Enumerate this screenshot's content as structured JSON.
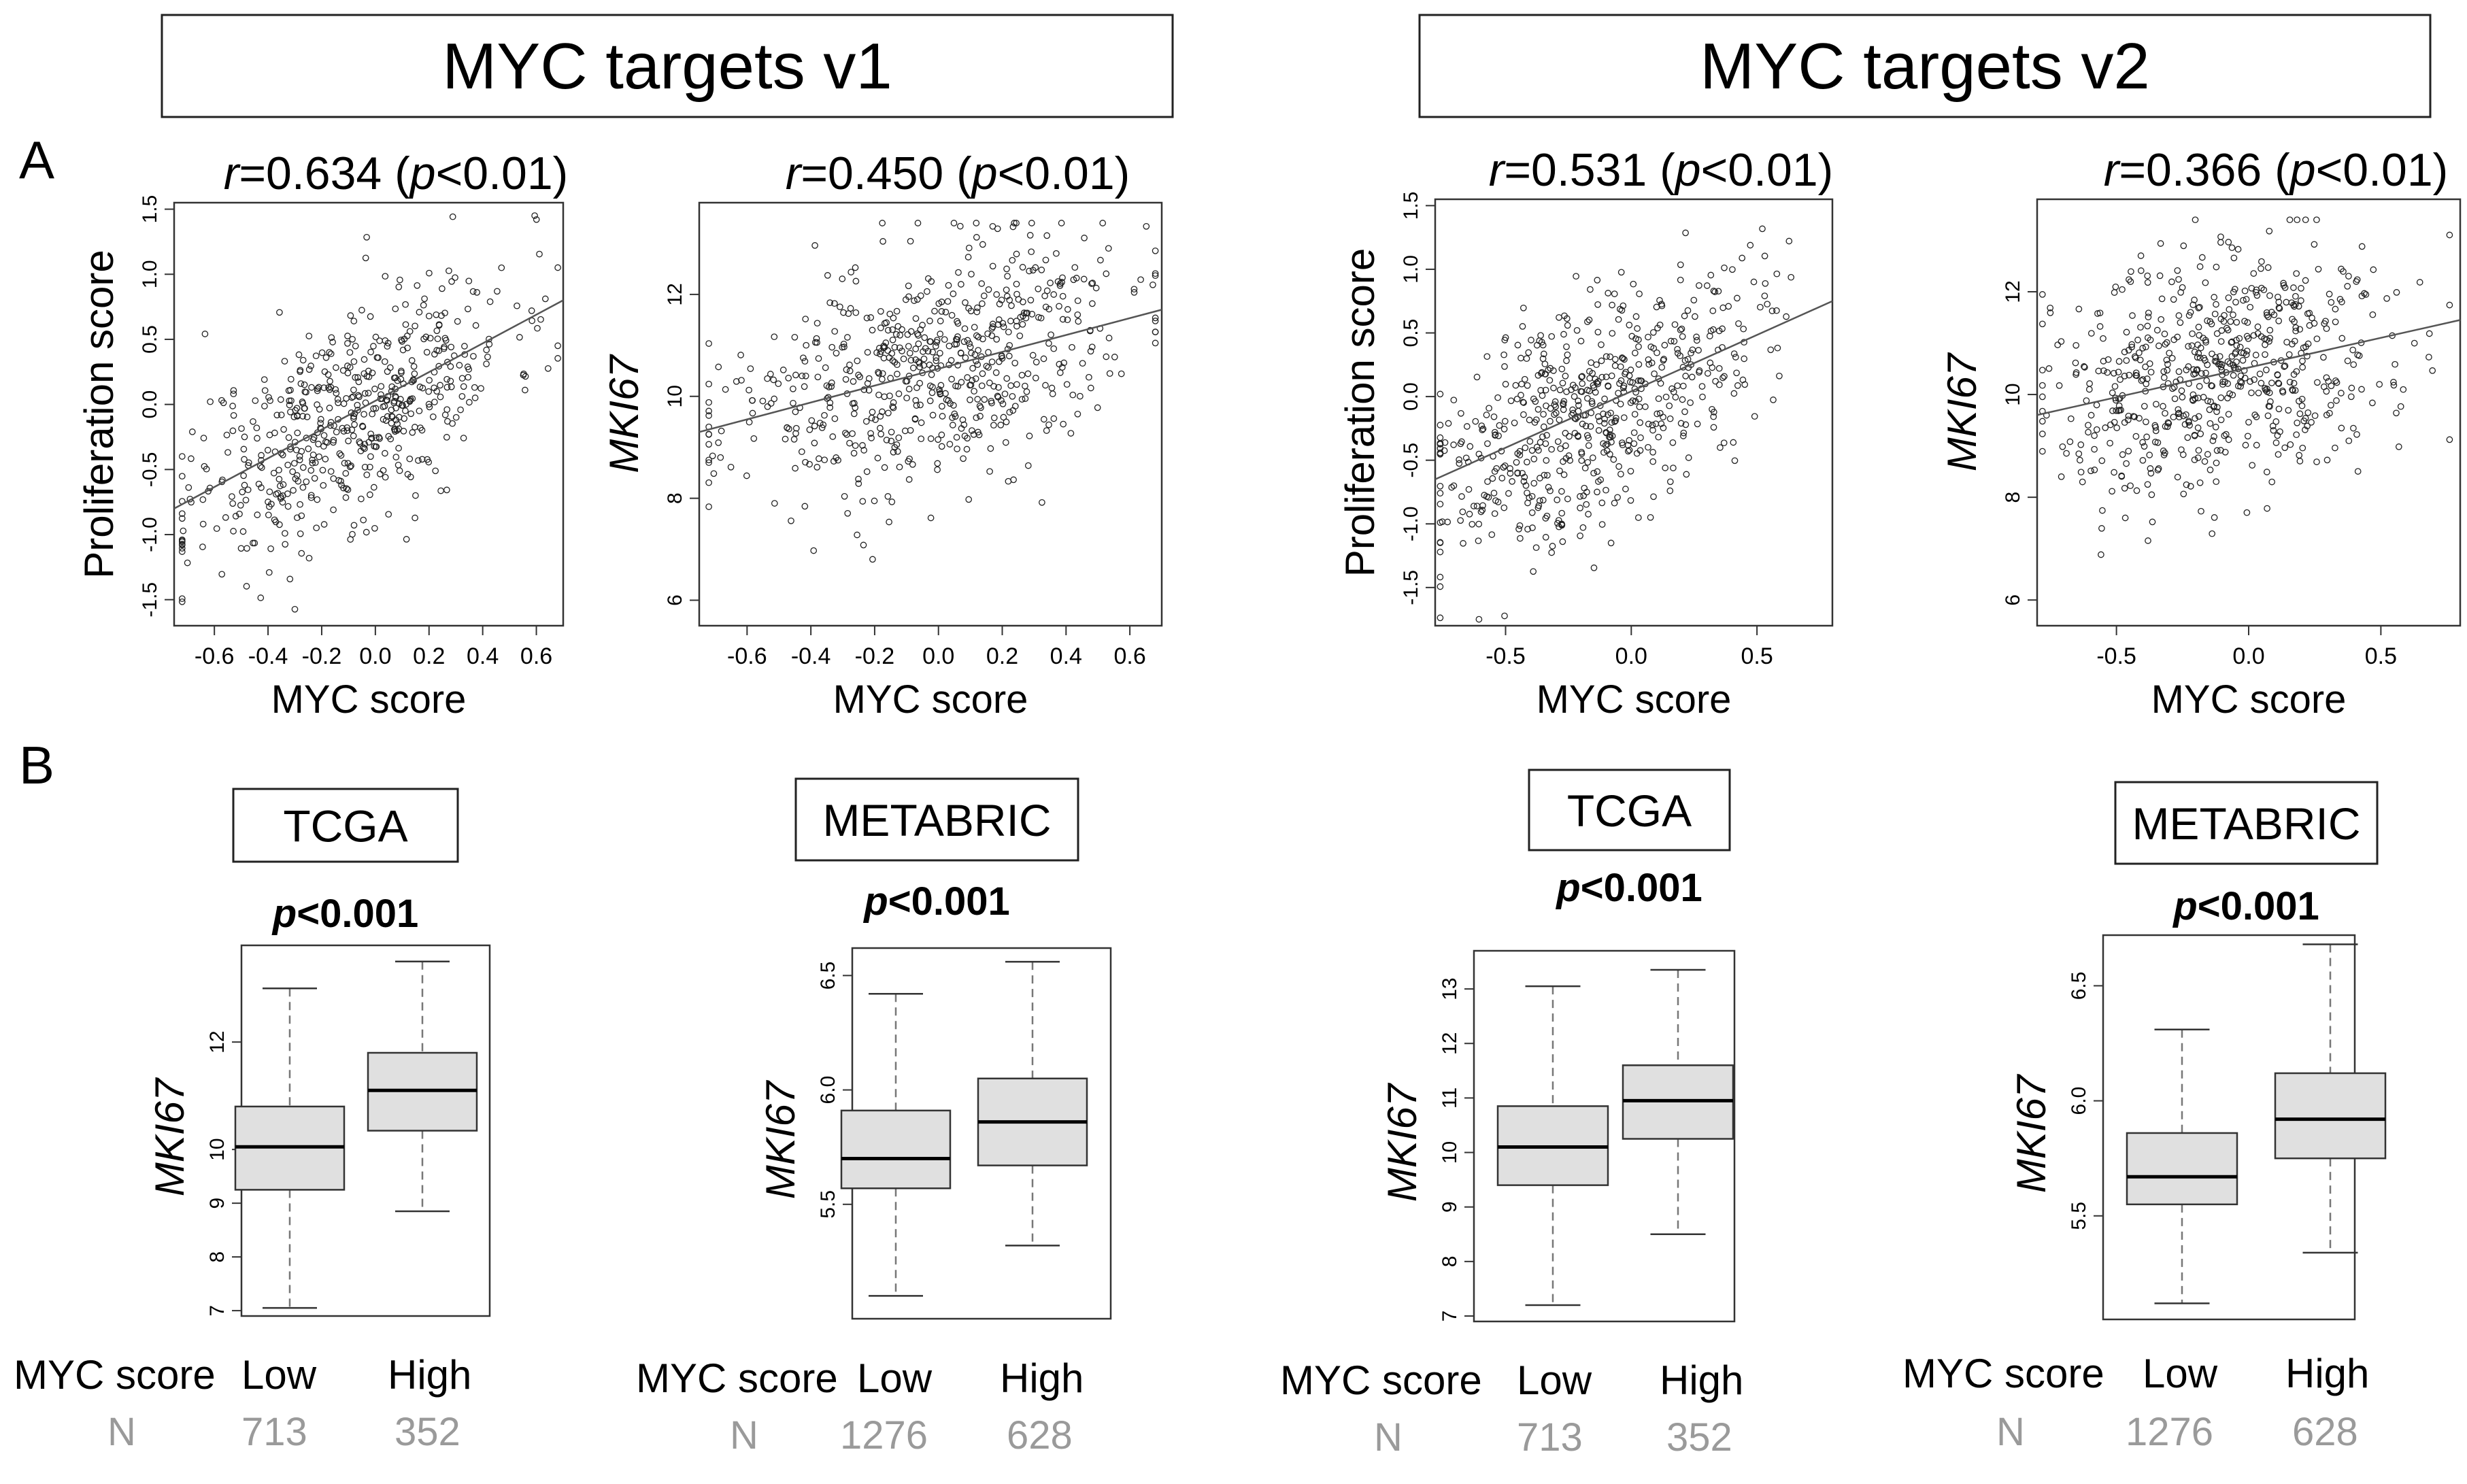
{
  "figure": {
    "group_titles": [
      "MYC targets v1",
      "MYC targets v2"
    ],
    "panel_labels": [
      "A",
      "B"
    ]
  },
  "chart_data": [
    {
      "type": "scatter",
      "id": "A1",
      "group": "MYC targets v1",
      "panel": "A",
      "title_r": "r",
      "title_value": "=0.634 (",
      "title_p": "p",
      "title_tail": "<0.01)",
      "xlabel": "MYC score",
      "ylabel": "Proliferation score",
      "ylabel_italic": false,
      "xlim": [
        -0.75,
        0.7
      ],
      "ylim": [
        -1.7,
        1.55
      ],
      "xticks": [
        -0.6,
        -0.4,
        -0.2,
        0.0,
        0.2,
        0.4,
        0.6
      ],
      "xtick_labels": [
        "-0.6",
        "-0.4",
        "-0.2",
        "0.0",
        "0.2",
        "0.4",
        "0.6"
      ],
      "yticks": [
        -1.5,
        -1.0,
        -0.5,
        0.0,
        0.5,
        1.0,
        1.5
      ],
      "ytick_labels": [
        "-1.5",
        "-1.0",
        "-0.5",
        "0.0",
        "0.5",
        "1.0",
        "1.5"
      ],
      "fit_line": {
        "x": [
          -0.75,
          0.7
        ],
        "y": [
          -0.8,
          0.8
        ]
      },
      "gen": {
        "n": 560,
        "xmean": -0.1,
        "xsd": 0.3,
        "xmin": -0.72,
        "xmax": 0.68,
        "slope": 1.1,
        "intercept": 0.02,
        "noise": 0.42,
        "ymin": -1.65,
        "ymax": 1.45,
        "seed": 11
      }
    },
    {
      "type": "scatter",
      "id": "A2",
      "group": "MYC targets v1",
      "panel": "A",
      "title_r": "r",
      "title_value": "=0.450 (",
      "title_p": "p",
      "title_tail": "<0.01)",
      "xlabel": "MYC score",
      "ylabel": "MKI67",
      "ylabel_italic": true,
      "xlim": [
        -0.75,
        0.7
      ],
      "ylim": [
        5.5,
        13.8
      ],
      "xticks": [
        -0.6,
        -0.4,
        -0.2,
        0.0,
        0.2,
        0.4,
        0.6
      ],
      "xtick_labels": [
        "-0.6",
        "-0.4",
        "-0.2",
        "0.0",
        "0.2",
        "0.4",
        "0.6"
      ],
      "yticks": [
        6,
        8,
        10,
        12
      ],
      "ytick_labels": [
        "6",
        "8",
        "10",
        "12"
      ],
      "fit_line": {
        "x": [
          -0.75,
          0.7
        ],
        "y": [
          9.3,
          11.7
        ]
      },
      "gen": {
        "n": 620,
        "xmean": -0.05,
        "xsd": 0.32,
        "xmin": -0.72,
        "xmax": 0.68,
        "slope": 1.65,
        "intercept": 10.55,
        "noise": 1.15,
        "ymin": 5.7,
        "ymax": 13.4,
        "seed": 23
      }
    },
    {
      "type": "scatter",
      "id": "A3",
      "group": "MYC targets v2",
      "panel": "A",
      "title_r": "r",
      "title_value": "=0.531 (",
      "title_p": "p",
      "title_tail": "<0.01)",
      "xlabel": "MYC score",
      "ylabel": "Proliferation score",
      "ylabel_italic": false,
      "xlim": [
        -0.78,
        0.8
      ],
      "ylim": [
        -1.8,
        1.55
      ],
      "xticks": [
        -0.5,
        0.0,
        0.5
      ],
      "xtick_labels": [
        "-0.5",
        "0.0",
        "0.5"
      ],
      "yticks": [
        -1.5,
        -1.0,
        -0.5,
        0.0,
        0.5,
        1.0,
        1.5
      ],
      "ytick_labels": [
        "-1.5",
        "-1.0",
        "-0.5",
        "0.0",
        "0.5",
        "1.0",
        "1.5"
      ],
      "fit_line": {
        "x": [
          -0.78,
          0.8
        ],
        "y": [
          -0.65,
          0.75
        ]
      },
      "gen": {
        "n": 600,
        "xmean": -0.15,
        "xsd": 0.32,
        "xmin": -0.76,
        "xmax": 0.75,
        "slope": 0.9,
        "intercept": 0.05,
        "noise": 0.45,
        "ymin": -1.75,
        "ymax": 1.35,
        "seed": 37
      }
    },
    {
      "type": "scatter",
      "id": "A4",
      "group": "MYC targets v2",
      "panel": "A",
      "title_r": "r",
      "title_value": "=0.366 (",
      "title_p": "p",
      "title_tail": "<0.01)",
      "xlabel": "MYC score",
      "ylabel": "MKI67",
      "ylabel_italic": true,
      "xlim": [
        -0.8,
        0.8
      ],
      "ylim": [
        5.5,
        13.8
      ],
      "xticks": [
        -0.5,
        0.0,
        0.5
      ],
      "xtick_labels": [
        "-0.5",
        "0.0",
        "0.5"
      ],
      "yticks": [
        6,
        8,
        10,
        12
      ],
      "ytick_labels": [
        "6",
        "8",
        "10",
        "12"
      ],
      "fit_line": {
        "x": [
          -0.8,
          0.8
        ],
        "y": [
          9.6,
          11.45
        ]
      },
      "gen": {
        "n": 620,
        "xmean": -0.1,
        "xsd": 0.33,
        "xmin": -0.78,
        "xmax": 0.76,
        "slope": 1.15,
        "intercept": 10.5,
        "noise": 1.2,
        "ymin": 5.7,
        "ymax": 13.4,
        "seed": 51
      }
    },
    {
      "type": "box",
      "id": "B1",
      "group": "MYC targets v1",
      "panel": "B",
      "dataset": "TCGA",
      "pvalue_p": "p",
      "pvalue_tail": "<0.001",
      "ylabel": "MKI67",
      "ylim": [
        6.9,
        13.8
      ],
      "yticks": [
        7,
        8,
        9,
        10,
        12
      ],
      "ytick_labels": [
        "7",
        "8",
        "9",
        "10",
        "12"
      ],
      "group_label": "MYC score",
      "n_label": "N",
      "groups": [
        {
          "name": "Low",
          "n": "713",
          "min": 7.05,
          "q1": 9.25,
          "median": 10.05,
          "q3": 10.8,
          "max": 13.0
        },
        {
          "name": "High",
          "n": "352",
          "min": 8.85,
          "q1": 10.35,
          "median": 11.1,
          "q3": 11.8,
          "max": 13.5
        }
      ]
    },
    {
      "type": "box",
      "id": "B2",
      "group": "MYC targets v1",
      "panel": "B",
      "dataset": "METABRIC",
      "pvalue_p": "p",
      "pvalue_tail": "<0.001",
      "ylabel": "MKI67",
      "ylim": [
        5.0,
        6.62
      ],
      "yticks": [
        5.5,
        6.0,
        6.5
      ],
      "ytick_labels": [
        "5.5",
        "6.0",
        "6.5"
      ],
      "group_label": "MYC score",
      "n_label": "N",
      "groups": [
        {
          "name": "Low",
          "n": "1276",
          "min": 5.1,
          "q1": 5.57,
          "median": 5.7,
          "q3": 5.91,
          "max": 6.42
        },
        {
          "name": "High",
          "n": "628",
          "min": 5.32,
          "q1": 5.67,
          "median": 5.86,
          "q3": 6.05,
          "max": 6.56
        }
      ]
    },
    {
      "type": "box",
      "id": "B3",
      "group": "MYC targets v2",
      "panel": "B",
      "dataset": "TCGA",
      "pvalue_p": "p",
      "pvalue_tail": "<0.001",
      "ylabel": "MKI67",
      "ylim": [
        6.9,
        13.7
      ],
      "yticks": [
        7,
        8,
        9,
        10,
        11,
        12,
        13
      ],
      "ytick_labels": [
        "7",
        "8",
        "9",
        "10",
        "11",
        "12",
        "13"
      ],
      "group_label": "MYC score",
      "n_label": "N",
      "groups": [
        {
          "name": "Low",
          "n": "713",
          "min": 7.2,
          "q1": 9.4,
          "median": 10.1,
          "q3": 10.85,
          "max": 13.05
        },
        {
          "name": "High",
          "n": "352",
          "min": 8.5,
          "q1": 10.25,
          "median": 10.95,
          "q3": 11.6,
          "max": 13.35
        }
      ]
    },
    {
      "type": "box",
      "id": "B4",
      "group": "MYC targets v2",
      "panel": "B",
      "dataset": "METABRIC",
      "pvalue_p": "p",
      "pvalue_tail": "<0.001",
      "ylabel": "MKI67",
      "ylim": [
        5.05,
        6.72
      ],
      "yticks": [
        5.5,
        6.0,
        6.5
      ],
      "ytick_labels": [
        "5.5",
        "6.0",
        "6.5"
      ],
      "group_label": "MYC score",
      "n_label": "N",
      "groups": [
        {
          "name": "Low",
          "n": "1276",
          "min": 5.12,
          "q1": 5.55,
          "median": 5.67,
          "q3": 5.86,
          "max": 6.31
        },
        {
          "name": "High",
          "n": "628",
          "min": 5.34,
          "q1": 5.75,
          "median": 5.92,
          "q3": 6.12,
          "max": 6.68
        }
      ]
    }
  ]
}
